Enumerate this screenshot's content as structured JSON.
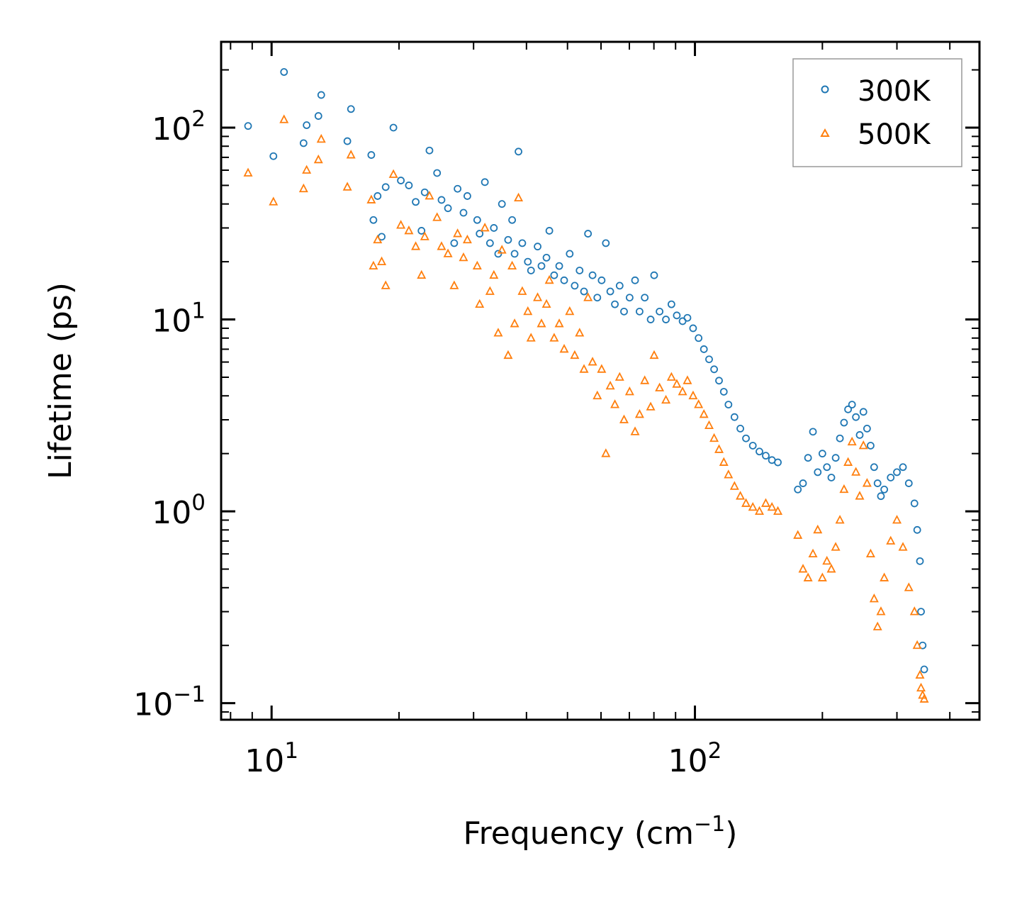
{
  "chart_data": {
    "type": "scatter",
    "xscale": "log",
    "yscale": "log",
    "xlabel": "Frequency (cm",
    "xlabel_superscript": "−1",
    "xlabel_suffix": ")",
    "ylabel": "Lifetime (ps)",
    "xlim": [
      7.6,
      470
    ],
    "ylim": [
      0.082,
      280
    ],
    "xticks": [
      {
        "value": 10,
        "base": "10",
        "exp": "1"
      },
      {
        "value": 100,
        "base": "10",
        "exp": "2"
      }
    ],
    "yticks": [
      {
        "value": 0.1,
        "base": "10",
        "exp": "−1"
      },
      {
        "value": 1,
        "base": "10",
        "exp": "0"
      },
      {
        "value": 10,
        "base": "10",
        "exp": "1"
      },
      {
        "value": 100,
        "base": "10",
        "exp": "2"
      }
    ],
    "legend": {
      "position": "top-right"
    },
    "series": [
      {
        "name": "300K",
        "marker": "circle",
        "color": "#1f77b4",
        "points": [
          [
            8.8,
            102
          ],
          [
            10.1,
            71
          ],
          [
            10.7,
            195
          ],
          [
            11.9,
            83
          ],
          [
            12.1,
            103
          ],
          [
            12.9,
            115
          ],
          [
            13.1,
            148
          ],
          [
            15.1,
            85
          ],
          [
            15.4,
            125
          ],
          [
            17.2,
            72
          ],
          [
            17.4,
            33
          ],
          [
            17.8,
            44
          ],
          [
            18.2,
            27
          ],
          [
            18.6,
            49
          ],
          [
            19.4,
            100
          ],
          [
            20.2,
            53
          ],
          [
            21.1,
            50
          ],
          [
            21.9,
            41
          ],
          [
            22.6,
            29
          ],
          [
            23.0,
            46
          ],
          [
            23.6,
            76
          ],
          [
            24.6,
            58
          ],
          [
            25.2,
            42
          ],
          [
            26.1,
            38
          ],
          [
            27.0,
            25
          ],
          [
            27.5,
            48
          ],
          [
            28.4,
            36
          ],
          [
            29.0,
            44
          ],
          [
            30.6,
            33
          ],
          [
            31.0,
            28
          ],
          [
            31.9,
            52
          ],
          [
            32.8,
            25
          ],
          [
            33.5,
            30
          ],
          [
            34.3,
            22
          ],
          [
            35.0,
            40
          ],
          [
            36.2,
            26
          ],
          [
            37.0,
            33
          ],
          [
            37.5,
            22
          ],
          [
            38.3,
            75
          ],
          [
            39.1,
            25
          ],
          [
            40.3,
            20
          ],
          [
            41.0,
            18
          ],
          [
            42.5,
            24
          ],
          [
            43.4,
            19
          ],
          [
            44.6,
            21
          ],
          [
            45.3,
            29
          ],
          [
            46.5,
            17
          ],
          [
            47.8,
            19
          ],
          [
            49.1,
            16
          ],
          [
            50.6,
            22
          ],
          [
            52.0,
            15
          ],
          [
            53.4,
            18
          ],
          [
            54.7,
            14
          ],
          [
            55.9,
            28
          ],
          [
            57.3,
            17
          ],
          [
            58.8,
            13
          ],
          [
            60.2,
            16
          ],
          [
            61.6,
            25
          ],
          [
            63.1,
            14
          ],
          [
            64.7,
            12
          ],
          [
            66.4,
            15
          ],
          [
            68.0,
            11
          ],
          [
            70.1,
            13
          ],
          [
            72.2,
            16
          ],
          [
            74.0,
            11
          ],
          [
            76.1,
            13
          ],
          [
            78.6,
            10
          ],
          [
            80.1,
            17
          ],
          [
            82.5,
            11
          ],
          [
            85.4,
            10
          ],
          [
            88.0,
            12
          ],
          [
            90.6,
            10.5
          ],
          [
            93.5,
            9.8
          ],
          [
            96.0,
            10.2
          ],
          [
            99.0,
            9.0
          ],
          [
            102,
            8.0
          ],
          [
            105,
            7.0
          ],
          [
            108,
            6.2
          ],
          [
            111,
            5.5
          ],
          [
            114,
            4.8
          ],
          [
            117,
            4.2
          ],
          [
            120,
            3.6
          ],
          [
            124,
            3.1
          ],
          [
            128,
            2.7
          ],
          [
            132,
            2.4
          ],
          [
            137,
            2.2
          ],
          [
            142,
            2.05
          ],
          [
            147,
            1.95
          ],
          [
            152,
            1.85
          ],
          [
            157,
            1.8
          ],
          [
            175,
            1.3
          ],
          [
            180,
            1.4
          ],
          [
            185,
            1.9
          ],
          [
            190,
            2.6
          ],
          [
            195,
            1.6
          ],
          [
            200,
            2.0
          ],
          [
            205,
            1.7
          ],
          [
            210,
            1.5
          ],
          [
            215,
            1.9
          ],
          [
            220,
            2.4
          ],
          [
            225,
            2.9
          ],
          [
            230,
            3.4
          ],
          [
            235,
            3.6
          ],
          [
            240,
            3.1
          ],
          [
            245,
            2.5
          ],
          [
            250,
            3.3
          ],
          [
            255,
            2.7
          ],
          [
            260,
            2.2
          ],
          [
            265,
            1.7
          ],
          [
            270,
            1.4
          ],
          [
            275,
            1.2
          ],
          [
            280,
            1.3
          ],
          [
            290,
            1.5
          ],
          [
            300,
            1.6
          ],
          [
            310,
            1.7
          ],
          [
            320,
            1.4
          ],
          [
            330,
            1.1
          ],
          [
            335,
            0.8
          ],
          [
            340,
            0.55
          ],
          [
            342,
            0.3
          ],
          [
            345,
            0.2
          ],
          [
            348,
            0.15
          ]
        ]
      },
      {
        "name": "500K",
        "marker": "triangle",
        "color": "#ff7f0e",
        "points": [
          [
            8.8,
            58
          ],
          [
            10.1,
            41
          ],
          [
            10.7,
            110
          ],
          [
            11.9,
            48
          ],
          [
            12.1,
            60
          ],
          [
            12.9,
            68
          ],
          [
            13.1,
            87
          ],
          [
            15.1,
            49
          ],
          [
            15.4,
            72
          ],
          [
            17.2,
            42
          ],
          [
            17.4,
            19
          ],
          [
            17.8,
            26
          ],
          [
            18.2,
            20
          ],
          [
            18.6,
            15
          ],
          [
            19.4,
            57
          ],
          [
            20.2,
            31
          ],
          [
            21.1,
            29
          ],
          [
            21.9,
            24
          ],
          [
            22.6,
            17
          ],
          [
            23.0,
            27
          ],
          [
            23.6,
            44
          ],
          [
            24.6,
            34
          ],
          [
            25.2,
            24
          ],
          [
            26.1,
            22
          ],
          [
            27.0,
            15
          ],
          [
            27.5,
            28
          ],
          [
            28.4,
            21
          ],
          [
            29.0,
            26
          ],
          [
            30.6,
            19
          ],
          [
            31.0,
            12
          ],
          [
            31.9,
            30
          ],
          [
            32.8,
            14
          ],
          [
            33.5,
            17
          ],
          [
            34.3,
            8.5
          ],
          [
            35.0,
            23
          ],
          [
            36.2,
            6.5
          ],
          [
            37.0,
            19
          ],
          [
            37.5,
            9.5
          ],
          [
            38.3,
            43
          ],
          [
            39.1,
            14
          ],
          [
            40.3,
            11
          ],
          [
            41.0,
            8.0
          ],
          [
            42.5,
            13
          ],
          [
            43.4,
            9.5
          ],
          [
            44.6,
            12
          ],
          [
            45.3,
            16
          ],
          [
            46.5,
            8.0
          ],
          [
            47.8,
            9.5
          ],
          [
            49.1,
            7.0
          ],
          [
            50.6,
            11
          ],
          [
            52.0,
            6.5
          ],
          [
            53.4,
            8.5
          ],
          [
            54.7,
            5.5
          ],
          [
            55.9,
            13
          ],
          [
            57.3,
            6.0
          ],
          [
            58.8,
            4.0
          ],
          [
            60.2,
            5.5
          ],
          [
            61.6,
            2.0
          ],
          [
            63.1,
            4.5
          ],
          [
            64.7,
            3.6
          ],
          [
            66.4,
            5.0
          ],
          [
            68.0,
            3.0
          ],
          [
            70.1,
            4.2
          ],
          [
            72.2,
            2.6
          ],
          [
            74.0,
            3.2
          ],
          [
            76.1,
            4.8
          ],
          [
            78.6,
            3.5
          ],
          [
            80.1,
            6.5
          ],
          [
            82.5,
            4.4
          ],
          [
            85.4,
            3.8
          ],
          [
            88.0,
            5.0
          ],
          [
            90.6,
            4.6
          ],
          [
            93.5,
            4.2
          ],
          [
            96.0,
            4.8
          ],
          [
            99.0,
            4.0
          ],
          [
            102,
            3.6
          ],
          [
            105,
            3.2
          ],
          [
            108,
            2.8
          ],
          [
            111,
            2.4
          ],
          [
            114,
            2.1
          ],
          [
            117,
            1.8
          ],
          [
            120,
            1.55
          ],
          [
            124,
            1.35
          ],
          [
            128,
            1.2
          ],
          [
            132,
            1.1
          ],
          [
            137,
            1.05
          ],
          [
            142,
            1.0
          ],
          [
            147,
            1.1
          ],
          [
            152,
            1.05
          ],
          [
            157,
            1.0
          ],
          [
            175,
            0.75
          ],
          [
            180,
            0.5
          ],
          [
            185,
            0.45
          ],
          [
            190,
            0.6
          ],
          [
            195,
            0.8
          ],
          [
            200,
            0.45
          ],
          [
            205,
            0.55
          ],
          [
            210,
            0.5
          ],
          [
            215,
            0.65
          ],
          [
            220,
            0.9
          ],
          [
            225,
            1.3
          ],
          [
            230,
            1.8
          ],
          [
            235,
            2.3
          ],
          [
            240,
            1.6
          ],
          [
            245,
            1.2
          ],
          [
            250,
            2.2
          ],
          [
            255,
            1.4
          ],
          [
            260,
            0.6
          ],
          [
            265,
            0.35
          ],
          [
            270,
            0.25
          ],
          [
            275,
            0.3
          ],
          [
            280,
            0.45
          ],
          [
            290,
            0.7
          ],
          [
            300,
            0.9
          ],
          [
            310,
            0.65
          ],
          [
            320,
            0.4
          ],
          [
            330,
            0.3
          ],
          [
            335,
            0.2
          ],
          [
            340,
            0.14
          ],
          [
            342,
            0.12
          ],
          [
            345,
            0.11
          ],
          [
            348,
            0.105
          ]
        ]
      }
    ]
  }
}
